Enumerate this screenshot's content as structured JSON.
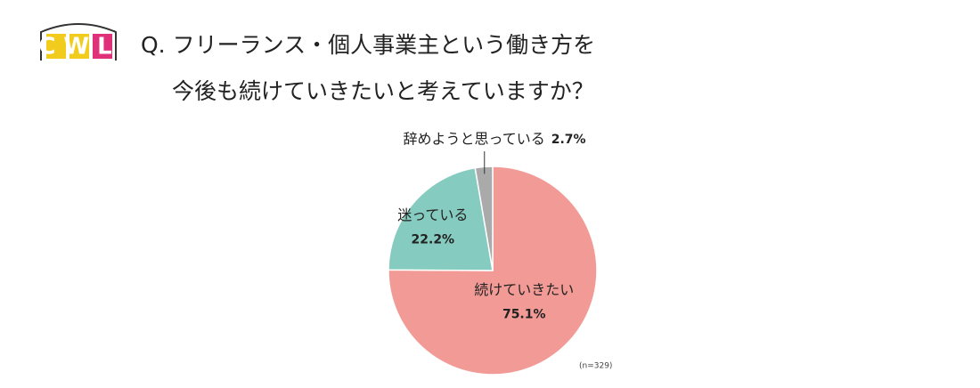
{
  "logo": "CWL",
  "chart_data": {
    "type": "pie",
    "title_lines": [
      "Q. フリーランス・個人事業主という働き方を",
      "今後も続けていきたいと考えていますか？"
    ],
    "categories": [
      "続けていきたい",
      "迷っている",
      "辞めようと思っている"
    ],
    "values": [
      75.1,
      22.2,
      2.7
    ],
    "value_labels": [
      "75.1%",
      "22.2%",
      "2.7%"
    ],
    "colors": [
      "#f29b96",
      "#86cbbf",
      "#aaaaaa"
    ],
    "note": "(n=329)"
  }
}
